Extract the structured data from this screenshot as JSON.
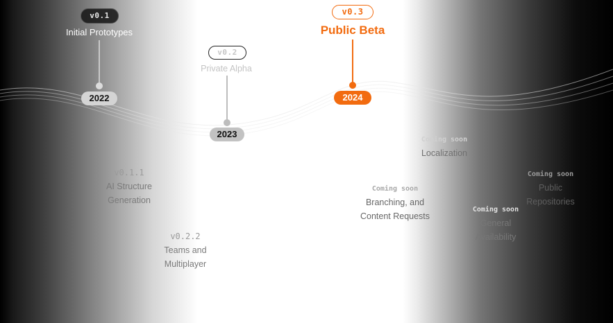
{
  "milestones": {
    "m2022": {
      "version": "v0.1",
      "title": "Initial Prototypes",
      "year": "2022"
    },
    "m2023": {
      "version": "v0.2",
      "title": "Private Alpha",
      "year": "2023"
    },
    "m2024": {
      "version": "v0.3",
      "title": "Public Beta",
      "year": "2024"
    }
  },
  "features": {
    "ai_structure": {
      "version": "v0.1.1",
      "line1": "AI Structure",
      "line2": "Generation"
    },
    "teams": {
      "version": "v0.2.2",
      "line1": "Teams and",
      "line2": "Multiplayer"
    },
    "localization": {
      "tag": "Coming soon",
      "label": "Localization"
    },
    "branching": {
      "tag": "Coming soon",
      "line1": "Branching, and",
      "line2": "Content Requests"
    },
    "general": {
      "tag": "Coming soon",
      "line1": "General",
      "line2": "Availability"
    },
    "public_repos": {
      "tag": "Coming soon",
      "line1": "Public",
      "line2": "Repositories"
    }
  },
  "colors": {
    "accent": "#f26b0f",
    "muted": "#c8c8c8",
    "dark_badge": "#3a3a3a"
  }
}
